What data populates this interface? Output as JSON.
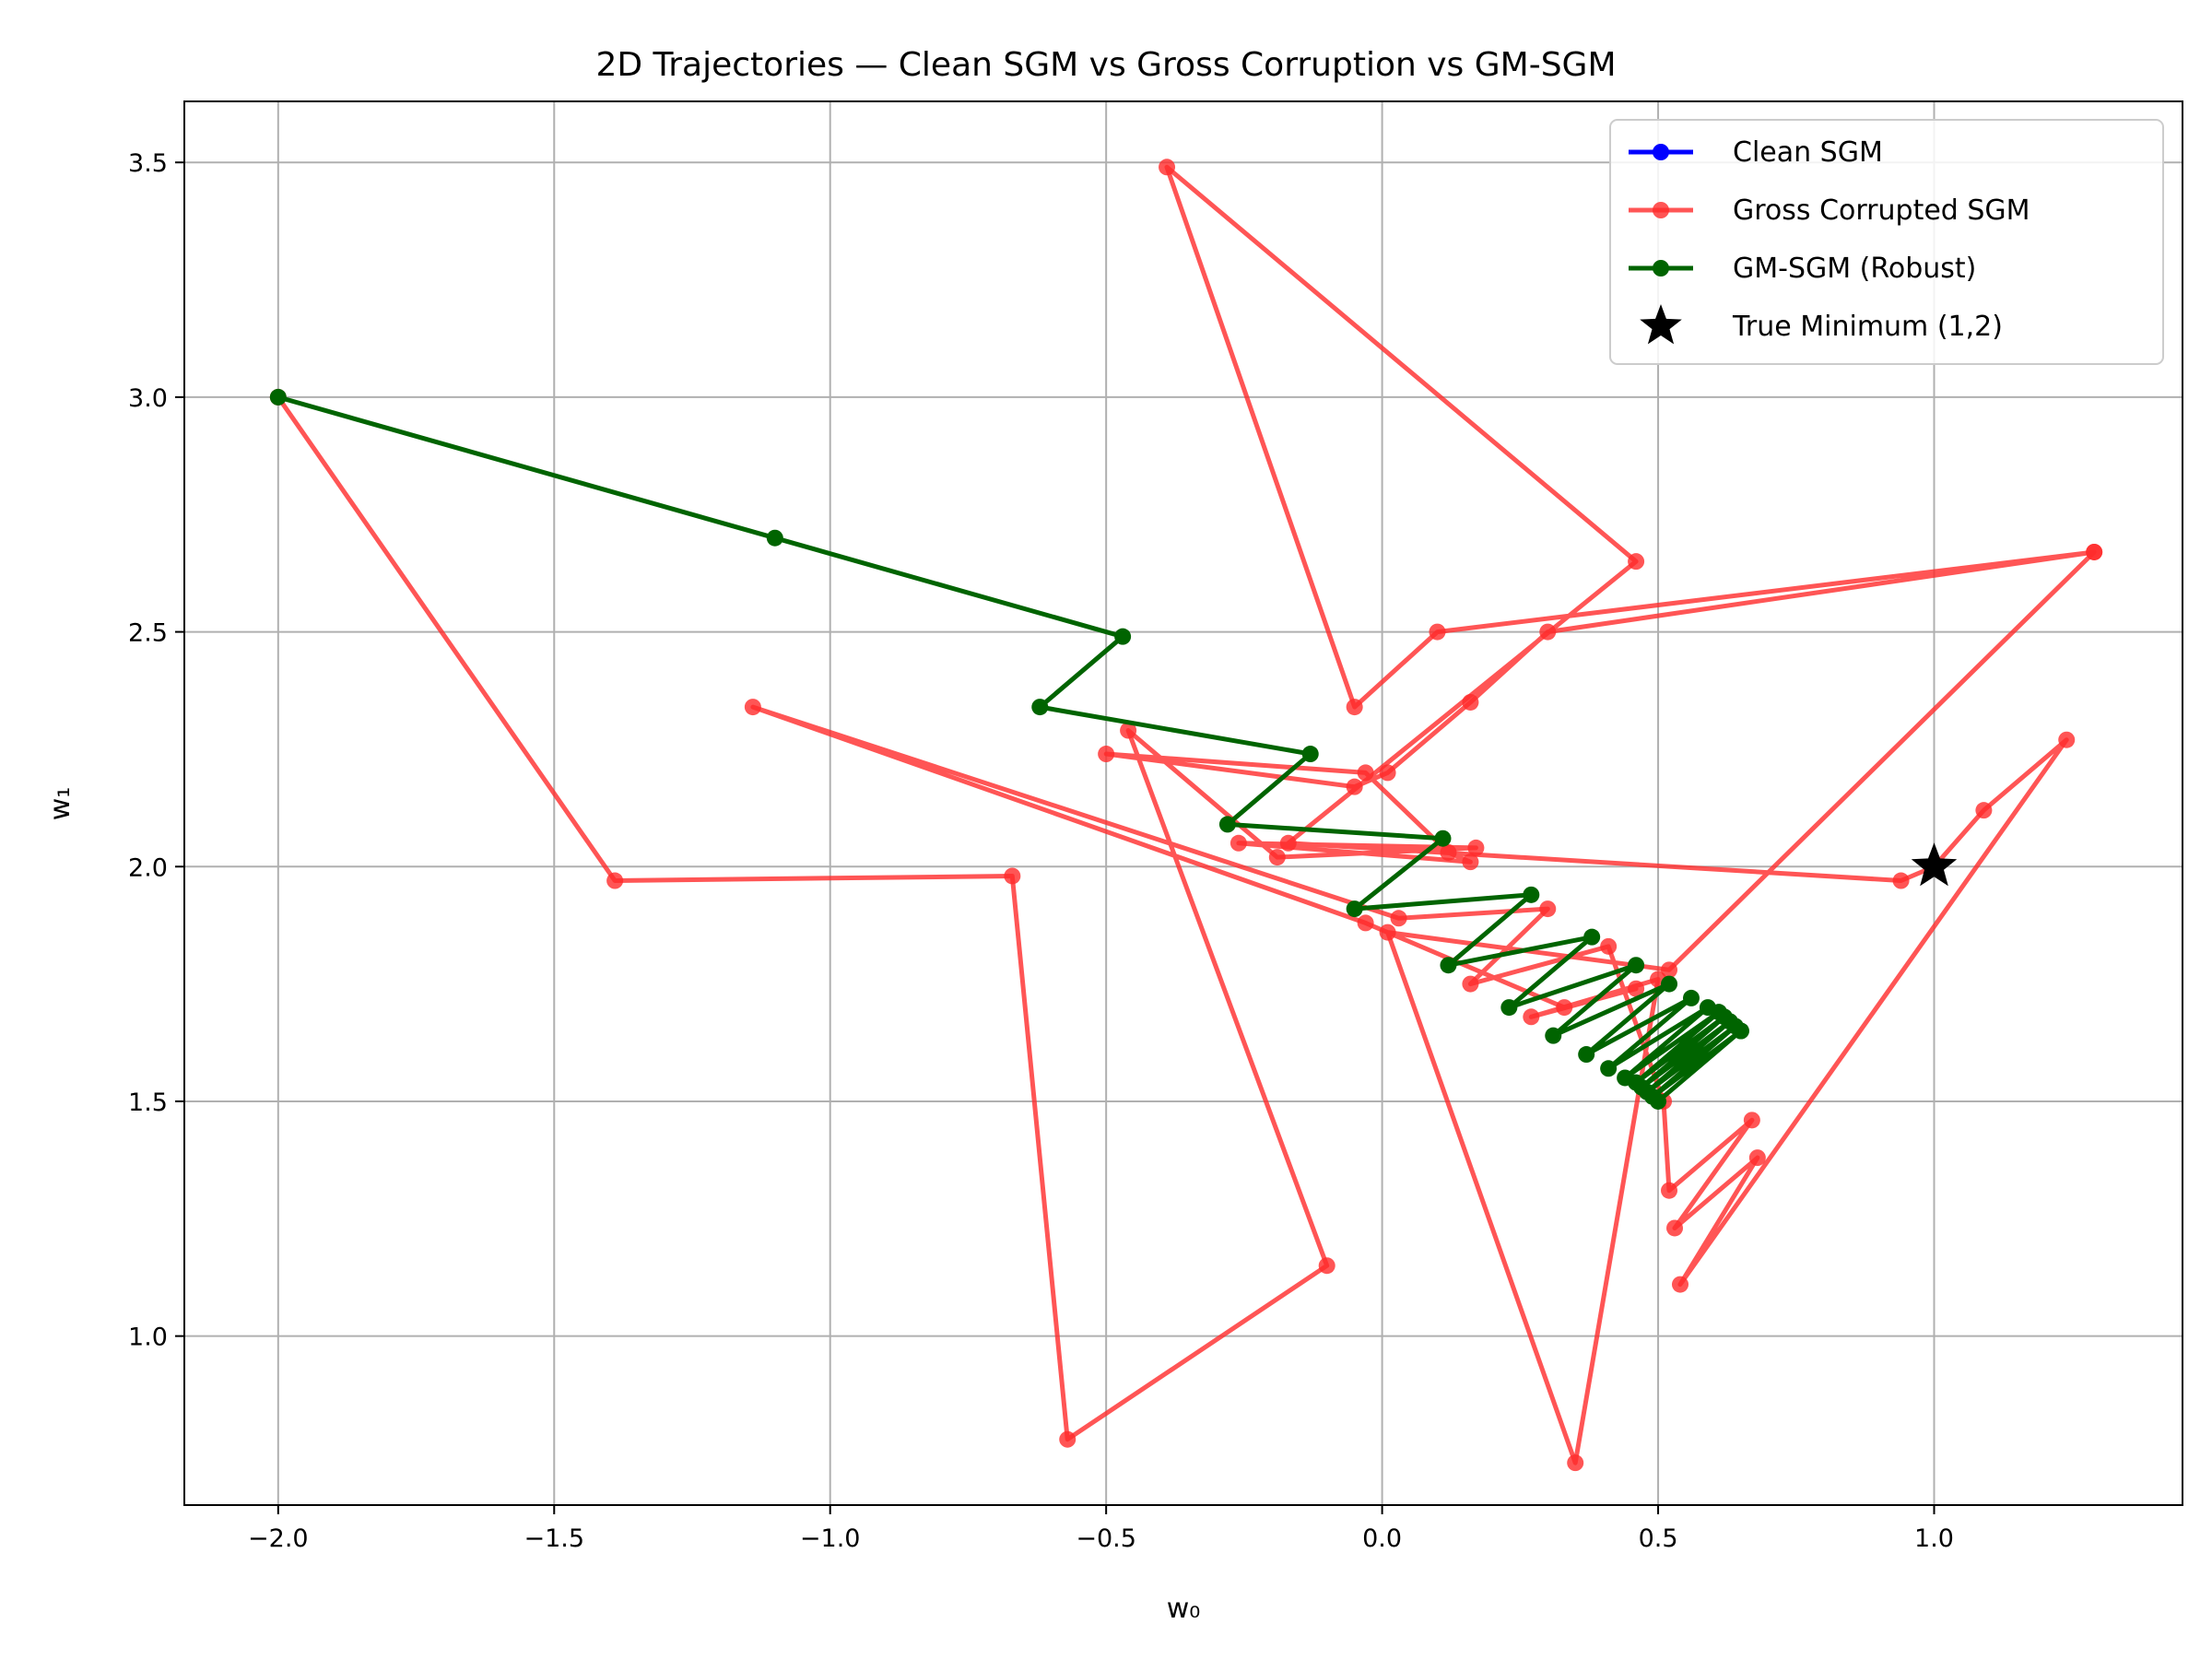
{
  "chart_data": {
    "type": "line",
    "title": "2D Trajectories — Clean SGM vs Gross Corruption vs GM-SGM",
    "xlabel": "w₀",
    "ylabel": "w₁",
    "xlim": [
      -2.17,
      1.45
    ],
    "ylim": [
      0.64,
      3.63
    ],
    "xticks": [
      -2.0,
      -1.5,
      -1.0,
      -0.5,
      0.0,
      0.5,
      1.0
    ],
    "xtick_labels": [
      "−2.0",
      "−1.5",
      "−1.0",
      "−0.5",
      "0.0",
      "0.5",
      "1.0"
    ],
    "yticks": [
      1.0,
      1.5,
      2.0,
      2.5,
      3.0,
      3.5
    ],
    "ytick_labels": [
      "1.0",
      "1.5",
      "2.0",
      "2.5",
      "3.0",
      "3.5"
    ],
    "grid": true,
    "legend_position": "top-right",
    "series": [
      {
        "name": "Clean SGM",
        "color": "#0000ff",
        "marker": "circle",
        "points": []
      },
      {
        "name": "Gross Corrupted SGM",
        "color": "#ff2a2a",
        "marker": "circle",
        "points": [
          [
            -2.0,
            3.0
          ],
          [
            -1.39,
            1.97
          ],
          [
            -0.67,
            1.98
          ],
          [
            -0.57,
            0.78
          ],
          [
            -0.1,
            1.15
          ],
          [
            -0.46,
            2.29
          ],
          [
            -0.19,
            2.02
          ],
          [
            0.17,
            2.04
          ],
          [
            -0.26,
            2.05
          ],
          [
            0.16,
            2.01
          ],
          [
            0.12,
            2.03
          ],
          [
            -0.03,
            2.2
          ],
          [
            -0.5,
            2.24
          ],
          [
            -0.05,
            2.17
          ],
          [
            0.01,
            2.2
          ],
          [
            0.16,
            2.35
          ],
          [
            0.3,
            2.5
          ],
          [
            1.29,
            2.67
          ],
          [
            0.1,
            2.5
          ],
          [
            -0.05,
            2.34
          ],
          [
            -0.39,
            3.49
          ],
          [
            0.46,
            2.65
          ],
          [
            -0.17,
            2.05
          ],
          [
            0.94,
            1.97
          ],
          [
            1.0,
            2.0
          ],
          [
            1.09,
            2.12
          ],
          [
            1.24,
            2.27
          ],
          [
            0.54,
            1.11
          ],
          [
            0.68,
            1.38
          ],
          [
            0.53,
            1.23
          ],
          [
            0.67,
            1.46
          ],
          [
            0.52,
            1.31
          ],
          [
            0.51,
            1.5
          ],
          [
            0.41,
            1.83
          ],
          [
            0.16,
            1.75
          ],
          [
            0.3,
            1.91
          ],
          [
            0.03,
            1.89
          ],
          [
            -1.14,
            2.34
          ],
          [
            -0.03,
            1.88
          ],
          [
            0.33,
            1.7
          ],
          [
            0.46,
            1.74
          ],
          [
            0.27,
            1.68
          ],
          [
            0.5,
            1.76
          ],
          [
            0.35,
            0.73
          ],
          [
            0.01,
            1.86
          ],
          [
            0.52,
            1.78
          ],
          [
            1.29,
            2.67
          ]
        ]
      },
      {
        "name": "GM-SGM (Robust)",
        "color": "#006400",
        "marker": "circle",
        "points": [
          [
            -2.0,
            3.0
          ],
          [
            -1.1,
            2.7
          ],
          [
            -0.47,
            2.49
          ],
          [
            -0.62,
            2.34
          ],
          [
            -0.13,
            2.24
          ],
          [
            -0.28,
            2.09
          ],
          [
            0.11,
            2.06
          ],
          [
            -0.05,
            1.91
          ],
          [
            0.27,
            1.94
          ],
          [
            0.12,
            1.79
          ],
          [
            0.38,
            1.85
          ],
          [
            0.23,
            1.7
          ],
          [
            0.46,
            1.79
          ],
          [
            0.31,
            1.64
          ],
          [
            0.52,
            1.75
          ],
          [
            0.37,
            1.6
          ],
          [
            0.56,
            1.72
          ],
          [
            0.41,
            1.57
          ],
          [
            0.59,
            1.7
          ],
          [
            0.44,
            1.55
          ],
          [
            0.61,
            1.69
          ],
          [
            0.46,
            1.54
          ],
          [
            0.62,
            1.68
          ],
          [
            0.47,
            1.53
          ],
          [
            0.63,
            1.67
          ],
          [
            0.48,
            1.52
          ],
          [
            0.64,
            1.66
          ],
          [
            0.49,
            1.51
          ],
          [
            0.65,
            1.65
          ],
          [
            0.5,
            1.5
          ],
          [
            0.65,
            1.65
          ]
        ]
      }
    ],
    "true_minimum": {
      "name": "True Minimum (1,2)",
      "x": 1.0,
      "y": 2.0,
      "color": "#000000",
      "marker": "star"
    }
  }
}
